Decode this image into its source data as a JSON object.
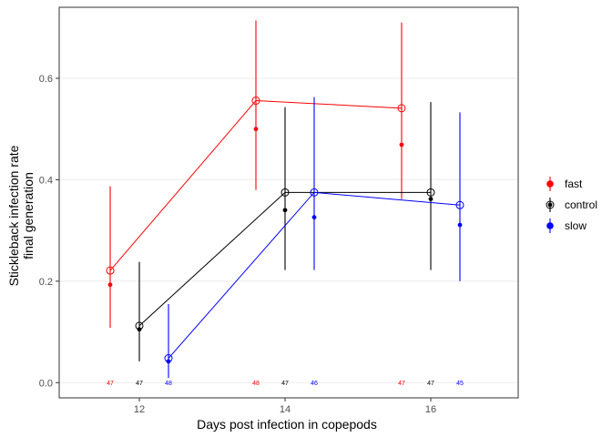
{
  "chart_data": {
    "type": "scatter",
    "xlabel": "Days post infection in copepods",
    "ylabel_lines": [
      "Stickleback infection rate",
      "final generation"
    ],
    "xlim": [
      10.9,
      17.2
    ],
    "ylim": [
      -0.03,
      0.74
    ],
    "x_ticks": [
      12,
      14,
      16
    ],
    "x_tick_labels": [
      "12",
      "14",
      "16"
    ],
    "y_ticks": [
      0.0,
      0.2,
      0.4,
      0.6
    ],
    "y_tick_labels": [
      "0.0",
      "0.2",
      "0.4",
      "0.6"
    ],
    "grid": "horizontal major lines",
    "legend_position": "right",
    "series": [
      {
        "name": "fast",
        "color": "#ff0000",
        "x": [
          11.6,
          13.6,
          15.6
        ],
        "fitted": [
          0.221,
          0.556,
          0.541
        ],
        "observed": [
          0.193,
          0.5,
          0.469
        ],
        "lower": [
          0.108,
          0.38,
          0.362
        ],
        "upper": [
          0.387,
          0.714,
          0.71
        ],
        "n_labels": [
          "47",
          "48",
          "47"
        ]
      },
      {
        "name": "control",
        "color": "#000000",
        "x": [
          12.0,
          14.0,
          16.0
        ],
        "fitted": [
          0.112,
          0.375,
          0.375
        ],
        "observed": [
          0.105,
          0.34,
          0.362
        ],
        "lower": [
          0.042,
          0.222,
          0.222
        ],
        "upper": [
          0.238,
          0.543,
          0.553
        ],
        "n_labels": [
          "47",
          "47",
          "47"
        ]
      },
      {
        "name": "slow",
        "color": "#0000ff",
        "x": [
          12.4,
          14.4,
          16.4
        ],
        "fitted": [
          0.048,
          0.375,
          0.35
        ],
        "observed": [
          0.042,
          0.326,
          0.311
        ],
        "lower": [
          0.009,
          0.222,
          0.2
        ],
        "upper": [
          0.155,
          0.563,
          0.533
        ],
        "n_labels": [
          "48",
          "46",
          "45"
        ]
      }
    ]
  }
}
